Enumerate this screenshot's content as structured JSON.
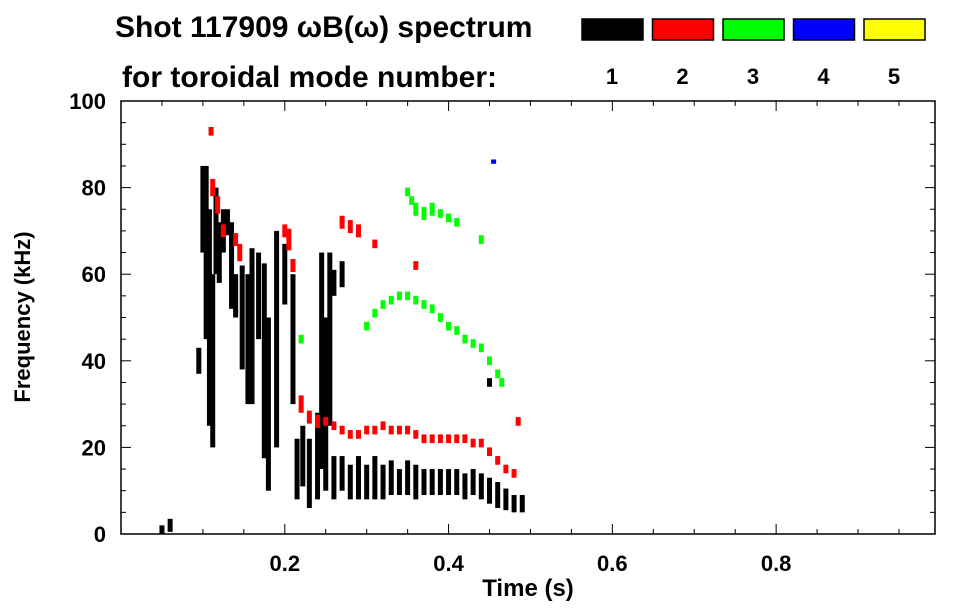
{
  "chart_data": {
    "type": "heatmap",
    "title": "Shot 117909 ωB(ω) spectrum",
    "subtitle": "for toroidal mode number:",
    "xlabel": "Time (s)",
    "ylabel": "Frequency (kHz)",
    "xlim": [
      0,
      0.994
    ],
    "ylim": [
      0,
      100
    ],
    "xticks": [
      {
        "v": 0.2,
        "label": "0.2"
      },
      {
        "v": 0.4,
        "label": "0.4"
      },
      {
        "v": 0.6,
        "label": "0.6"
      },
      {
        "v": 0.8,
        "label": "0.8"
      }
    ],
    "yticks": [
      {
        "v": 0,
        "label": "0"
      },
      {
        "v": 20,
        "label": "20"
      },
      {
        "v": 40,
        "label": "40"
      },
      {
        "v": 60,
        "label": "60"
      },
      {
        "v": 80,
        "label": "80"
      },
      {
        "v": 100,
        "label": "100"
      }
    ],
    "legend": [
      {
        "mode": "1",
        "color": "#000000"
      },
      {
        "mode": "2",
        "color": "#ff0000"
      },
      {
        "mode": "3",
        "color": "#00ff00"
      },
      {
        "mode": "4",
        "color": "#0000ff"
      },
      {
        "mode": "5",
        "color": "#ffff00"
      }
    ],
    "series": [
      {
        "name": "1",
        "color": "#000000",
        "traces": [
          [
            0.05,
            1,
            2
          ],
          [
            0.06,
            2,
            3
          ],
          [
            0.095,
            40,
            6
          ],
          [
            0.1,
            75,
            20
          ],
          [
            0.104,
            65,
            40
          ],
          [
            0.108,
            50,
            50
          ],
          [
            0.112,
            40,
            40
          ],
          [
            0.116,
            70,
            20
          ],
          [
            0.12,
            65,
            14
          ],
          [
            0.125,
            70,
            10
          ],
          [
            0.13,
            72,
            6
          ],
          [
            0.135,
            62,
            20
          ],
          [
            0.14,
            55,
            10
          ],
          [
            0.148,
            50,
            24
          ],
          [
            0.155,
            45,
            30
          ],
          [
            0.16,
            48,
            36
          ],
          [
            0.168,
            55,
            20
          ],
          [
            0.175,
            40,
            45
          ],
          [
            0.18,
            30,
            40
          ],
          [
            0.19,
            45,
            50
          ],
          [
            0.2,
            60,
            14
          ],
          [
            0.21,
            45,
            30
          ],
          [
            0.215,
            15,
            14
          ],
          [
            0.222,
            18,
            14
          ],
          [
            0.23,
            14,
            16
          ],
          [
            0.24,
            18,
            20
          ],
          [
            0.245,
            40,
            50
          ],
          [
            0.25,
            30,
            40
          ],
          [
            0.255,
            45,
            40
          ],
          [
            0.26,
            58,
            6
          ],
          [
            0.27,
            60,
            6
          ],
          [
            0.26,
            13,
            10
          ],
          [
            0.27,
            14,
            8
          ],
          [
            0.28,
            12,
            8
          ],
          [
            0.29,
            13,
            10
          ],
          [
            0.3,
            12,
            8
          ],
          [
            0.31,
            13,
            10
          ],
          [
            0.32,
            12,
            8
          ],
          [
            0.33,
            13,
            8
          ],
          [
            0.34,
            12,
            6
          ],
          [
            0.35,
            13,
            8
          ],
          [
            0.36,
            12,
            8
          ],
          [
            0.37,
            12,
            6
          ],
          [
            0.38,
            12,
            6
          ],
          [
            0.39,
            12,
            6
          ],
          [
            0.4,
            12,
            6
          ],
          [
            0.41,
            12,
            6
          ],
          [
            0.42,
            11,
            6
          ],
          [
            0.43,
            12,
            6
          ],
          [
            0.44,
            11,
            6
          ],
          [
            0.45,
            10,
            6
          ],
          [
            0.46,
            9,
            6
          ],
          [
            0.47,
            8,
            5
          ],
          [
            0.48,
            7,
            4
          ],
          [
            0.49,
            7,
            4
          ],
          [
            0.45,
            35,
            2
          ]
        ]
      },
      {
        "name": "2",
        "color": "#ff0000",
        "traces": [
          [
            0.11,
            93,
            2
          ],
          [
            0.112,
            80,
            4
          ],
          [
            0.118,
            76,
            4
          ],
          [
            0.125,
            70,
            3
          ],
          [
            0.14,
            68,
            3
          ],
          [
            0.145,
            65,
            4
          ],
          [
            0.2,
            70,
            3
          ],
          [
            0.205,
            68,
            5
          ],
          [
            0.21,
            62,
            3
          ],
          [
            0.27,
            72,
            3
          ],
          [
            0.28,
            71,
            3
          ],
          [
            0.29,
            70,
            3
          ],
          [
            0.31,
            67,
            2
          ],
          [
            0.36,
            62,
            2
          ],
          [
            0.22,
            30,
            4
          ],
          [
            0.23,
            27,
            3
          ],
          [
            0.24,
            26,
            3
          ],
          [
            0.25,
            26,
            2
          ],
          [
            0.26,
            25,
            2
          ],
          [
            0.27,
            24,
            2
          ],
          [
            0.28,
            23,
            2
          ],
          [
            0.29,
            23,
            2
          ],
          [
            0.3,
            24,
            2
          ],
          [
            0.31,
            24,
            2
          ],
          [
            0.32,
            25,
            2
          ],
          [
            0.33,
            24,
            2
          ],
          [
            0.34,
            24,
            2
          ],
          [
            0.35,
            24,
            2
          ],
          [
            0.36,
            23,
            2
          ],
          [
            0.37,
            22,
            2
          ],
          [
            0.38,
            22,
            2
          ],
          [
            0.39,
            22,
            2
          ],
          [
            0.4,
            22,
            2
          ],
          [
            0.41,
            22,
            2
          ],
          [
            0.42,
            22,
            2
          ],
          [
            0.43,
            21,
            2
          ],
          [
            0.44,
            21,
            2
          ],
          [
            0.45,
            19,
            2
          ],
          [
            0.46,
            17,
            2
          ],
          [
            0.47,
            15,
            2
          ],
          [
            0.48,
            14,
            2
          ],
          [
            0.485,
            26,
            2
          ]
        ]
      },
      {
        "name": "3",
        "color": "#00ff00",
        "traces": [
          [
            0.35,
            79,
            2
          ],
          [
            0.355,
            77,
            2
          ],
          [
            0.36,
            75,
            3
          ],
          [
            0.37,
            74,
            3
          ],
          [
            0.38,
            75,
            3
          ],
          [
            0.39,
            74,
            2
          ],
          [
            0.4,
            73,
            2
          ],
          [
            0.41,
            72,
            2
          ],
          [
            0.44,
            68,
            2
          ],
          [
            0.3,
            48,
            2
          ],
          [
            0.31,
            51,
            2
          ],
          [
            0.32,
            53,
            2
          ],
          [
            0.33,
            54,
            2
          ],
          [
            0.34,
            55,
            2
          ],
          [
            0.35,
            55,
            2
          ],
          [
            0.36,
            54,
            2
          ],
          [
            0.37,
            53,
            2
          ],
          [
            0.38,
            52,
            2
          ],
          [
            0.39,
            50,
            2
          ],
          [
            0.4,
            48,
            2
          ],
          [
            0.41,
            47,
            2
          ],
          [
            0.42,
            45,
            2
          ],
          [
            0.43,
            44,
            2
          ],
          [
            0.44,
            43,
            2
          ],
          [
            0.45,
            40,
            2
          ],
          [
            0.46,
            37,
            2
          ],
          [
            0.465,
            35,
            2
          ],
          [
            0.22,
            45,
            2
          ]
        ]
      },
      {
        "name": "4",
        "color": "#0000ff",
        "traces": [
          [
            0.455,
            86,
            1
          ]
        ]
      },
      {
        "name": "5",
        "color": "#ffff00",
        "traces": []
      }
    ]
  }
}
